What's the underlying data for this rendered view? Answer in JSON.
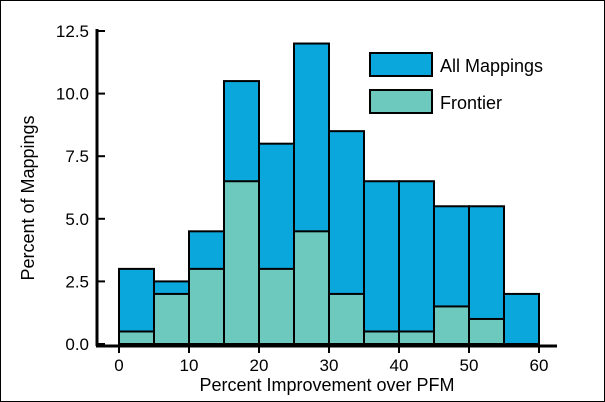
{
  "chart_data": {
    "type": "bar",
    "bin_edges": [
      0,
      5,
      10,
      15,
      20,
      25,
      30,
      35,
      40,
      45,
      50,
      55,
      60
    ],
    "series": [
      {
        "name": "All Mappings",
        "color": "#0aa7dc",
        "values": [
          3.0,
          2.5,
          4.5,
          10.5,
          8.0,
          12.0,
          8.5,
          6.5,
          6.5,
          5.5,
          5.5,
          2.0
        ]
      },
      {
        "name": "Frontier",
        "color": "#6dc9bd",
        "values": [
          0.5,
          2.0,
          3.0,
          6.5,
          3.0,
          4.5,
          2.0,
          0.5,
          0.5,
          1.5,
          1.0,
          0.0
        ]
      }
    ],
    "xlabel": "Percent Improvement over PFM",
    "ylabel": "Percent of Mappings",
    "xlim": [
      -3,
      62
    ],
    "ylim": [
      0,
      12.5
    ],
    "x_ticks": [
      "0",
      "10",
      "20",
      "30",
      "40",
      "50",
      "60"
    ],
    "y_ticks": [
      "0.0",
      "2.5",
      "5.0",
      "7.5",
      "10.0",
      "12.5"
    ],
    "legend_position": "top-right",
    "grid": false
  }
}
